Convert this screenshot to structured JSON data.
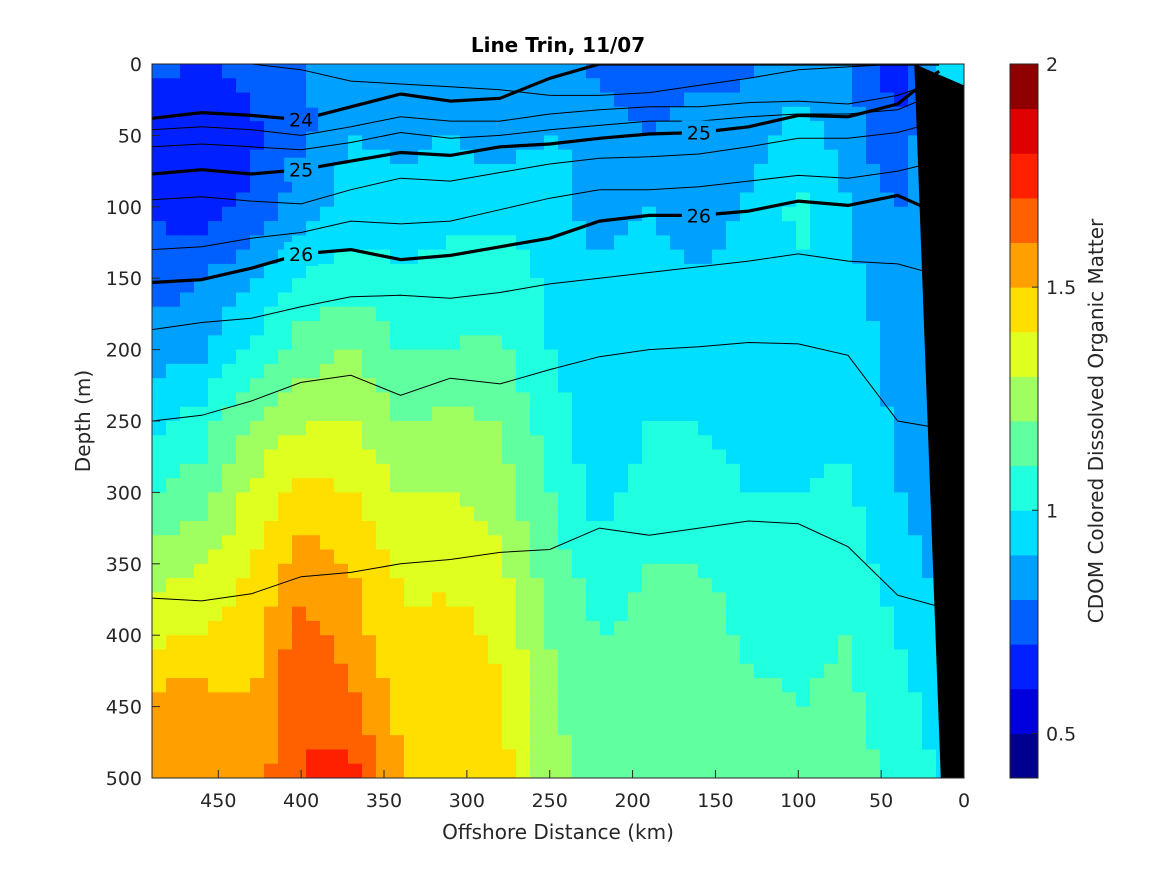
{
  "chart_data": {
    "type": "heatmap",
    "title": "Line Trin, 11/07",
    "xlabel": "Offshore Distance (km)",
    "ylabel": "Depth (m)",
    "colorbar_label": "CDOM Colored Dissolved Organic Matter",
    "xlim": [
      490,
      0
    ],
    "ylim": [
      0,
      500
    ],
    "x_reversed": true,
    "y_reversed": true,
    "x_ticks": [
      "450",
      "400",
      "350",
      "300",
      "250",
      "200",
      "150",
      "100",
      "50",
      "0"
    ],
    "y_ticks": [
      "0",
      "50",
      "100",
      "150",
      "200",
      "250",
      "300",
      "350",
      "400",
      "450",
      "500"
    ],
    "colorbar_ticks": [
      "0.5",
      "1",
      "1.5",
      "2"
    ],
    "colorbar_range": [
      0.4,
      2.0
    ],
    "colorbar_levels": 16,
    "colormap": "jet",
    "colormap_colors": [
      "#00008f",
      "#0000df",
      "#0020ff",
      "#0060ff",
      "#00a0ff",
      "#00dfff",
      "#20ffdf",
      "#60ffa0",
      "#a0ff60",
      "#dfff20",
      "#ffdf00",
      "#ffa000",
      "#ff6000",
      "#ff2000",
      "#df0000",
      "#8f0000"
    ],
    "cdom_field": {
      "x": [
        490,
        460,
        430,
        400,
        370,
        340,
        310,
        280,
        250,
        220,
        190,
        160,
        130,
        100,
        70,
        40,
        15
      ],
      "depth": [
        0,
        50,
        100,
        150,
        200,
        250,
        300,
        350,
        400,
        450,
        500
      ],
      "values": [
        [
          0.72,
          0.7,
          0.72,
          0.8,
          0.88,
          0.85,
          0.82,
          0.8,
          0.85,
          0.78,
          0.72,
          0.75,
          0.78,
          0.85,
          0.8,
          0.65,
          0.9
        ],
        [
          0.62,
          0.62,
          0.68,
          0.78,
          0.9,
          0.88,
          0.9,
          0.85,
          0.9,
          0.88,
          0.8,
          0.88,
          0.85,
          0.95,
          0.85,
          0.7,
          0.95
        ],
        [
          0.68,
          0.65,
          0.72,
          0.85,
          0.95,
          0.92,
          0.95,
          0.98,
          0.95,
          0.85,
          0.9,
          0.82,
          0.92,
          1.02,
          0.9,
          0.8,
          0.9
        ],
        [
          0.75,
          0.8,
          0.88,
          1.02,
          1.05,
          1.02,
          1.05,
          1.05,
          0.98,
          0.92,
          0.95,
          0.9,
          0.98,
          1.0,
          0.92,
          0.85,
          0.9
        ],
        [
          0.85,
          0.88,
          1.02,
          1.15,
          1.2,
          1.1,
          1.1,
          1.12,
          1.0,
          0.95,
          0.98,
          0.95,
          0.95,
          0.98,
          0.95,
          0.88,
          0.85
        ],
        [
          0.95,
          1.05,
          1.2,
          1.28,
          1.3,
          1.2,
          1.22,
          1.2,
          1.05,
          0.92,
          1.0,
          1.0,
          0.95,
          0.95,
          0.98,
          0.88,
          0.85
        ],
        [
          1.1,
          1.15,
          1.32,
          1.45,
          1.4,
          1.3,
          1.3,
          1.25,
          1.1,
          0.95,
          1.05,
          1.05,
          1.0,
          1.0,
          1.02,
          0.9,
          0.85
        ],
        [
          1.25,
          1.3,
          1.4,
          1.55,
          1.5,
          1.38,
          1.35,
          1.32,
          1.15,
          1.05,
          1.1,
          1.1,
          1.05,
          1.05,
          1.05,
          0.95,
          0.88
        ],
        [
          1.38,
          1.4,
          1.45,
          1.65,
          1.55,
          1.42,
          1.45,
          1.38,
          1.2,
          1.1,
          1.12,
          1.15,
          1.08,
          1.08,
          1.1,
          1.0,
          0.9
        ],
        [
          1.55,
          1.55,
          1.5,
          1.7,
          1.62,
          1.48,
          1.5,
          1.42,
          1.22,
          1.12,
          1.15,
          1.18,
          1.12,
          1.1,
          1.12,
          1.05,
          0.95
        ],
        [
          1.55,
          1.6,
          1.55,
          1.7,
          1.75,
          1.5,
          1.48,
          1.45,
          1.25,
          1.15,
          1.18,
          1.2,
          1.15,
          1.12,
          1.15,
          1.08,
          1.0
        ]
      ]
    },
    "density_contours": {
      "x": [
        490,
        460,
        430,
        400,
        370,
        340,
        310,
        280,
        250,
        220,
        190,
        160,
        130,
        100,
        70,
        40,
        15
      ],
      "labeled": [
        {
          "level": "24",
          "depths": [
            38,
            34,
            36,
            39,
            30,
            21,
            26,
            24,
            10,
            0,
            0,
            0,
            0,
            0,
            0,
            0,
            0
          ]
        },
        {
          "level": "25",
          "depths": [
            77,
            74,
            77,
            74,
            68,
            62,
            64,
            58,
            56,
            52,
            49,
            48,
            44,
            36,
            37,
            28,
            5
          ]
        },
        {
          "level": "26",
          "depths": [
            153,
            151,
            143,
            133,
            130,
            137,
            134,
            128,
            122,
            110,
            106,
            106,
            103,
            96,
            99,
            92,
            105
          ]
        }
      ],
      "unlabeled": [
        {
          "depths": [
            0,
            0,
            0,
            4,
            12,
            14,
            16,
            18,
            22,
            22,
            20,
            15,
            10,
            4,
            2,
            0,
            0
          ]
        },
        {
          "depths": [
            46,
            44,
            46,
            50,
            44,
            37,
            40,
            40,
            35,
            32,
            30,
            30,
            27,
            26,
            28,
            22,
            12
          ]
        },
        {
          "depths": [
            58,
            56,
            58,
            60,
            55,
            48,
            52,
            50,
            46,
            43,
            40,
            40,
            37,
            35,
            35,
            32,
            20
          ]
        },
        {
          "depths": [
            95,
            93,
            96,
            98,
            88,
            80,
            82,
            76,
            70,
            66,
            65,
            63,
            58,
            52,
            52,
            48,
            40
          ]
        },
        {
          "depths": [
            130,
            128,
            122,
            118,
            110,
            112,
            110,
            102,
            94,
            88,
            88,
            86,
            82,
            78,
            80,
            75,
            68
          ]
        },
        {
          "depths": [
            186,
            181,
            178,
            170,
            163,
            162,
            164,
            160,
            154,
            150,
            146,
            142,
            138,
            133,
            138,
            140,
            148
          ]
        },
        {
          "depths": [
            250,
            246,
            236,
            223,
            218,
            232,
            220,
            224,
            214,
            205,
            200,
            198,
            195,
            196,
            204,
            250,
            255
          ]
        },
        {
          "depths": [
            374,
            376,
            371,
            359,
            356,
            350,
            347,
            342,
            340,
            325,
            330,
            325,
            320,
            322,
            338,
            372,
            380
          ]
        }
      ]
    },
    "seafloor_mask": {
      "x": [
        0,
        0,
        14,
        30
      ],
      "depth": [
        15,
        500,
        500,
        0
      ]
    }
  }
}
